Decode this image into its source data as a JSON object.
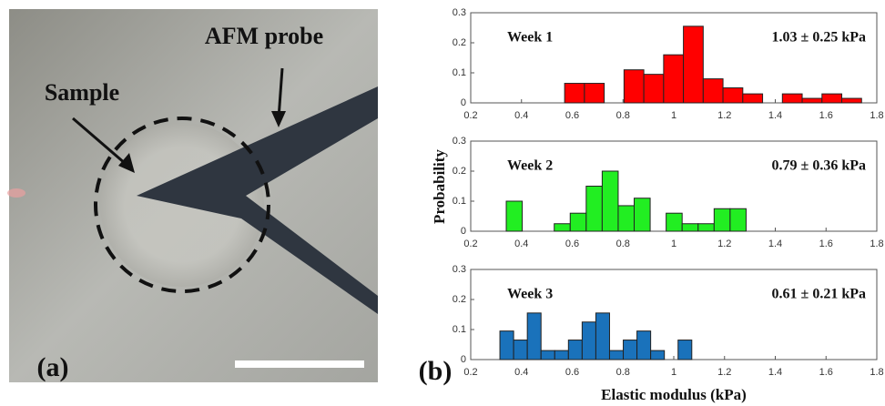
{
  "figure": {
    "panel_a": "(a)",
    "panel_b": "(b)",
    "photo_labels": [
      "AFM probe",
      "Sample"
    ],
    "ylabel": "Probability",
    "xlabel": "Elastic modulus (kPa)"
  },
  "chart_data": [
    {
      "type": "histogram",
      "title": "Week 1",
      "annotation": "1.03 ± 0.25 kPa",
      "color": "#ff0000",
      "bins": [
        0.57,
        0.648,
        0.726,
        0.804,
        0.882,
        0.96,
        1.038,
        1.116,
        1.194,
        1.272,
        1.35,
        1.428,
        1.506,
        1.584,
        1.662,
        1.74
      ],
      "values": [
        0.065,
        0.065,
        0,
        0.11,
        0.095,
        0.16,
        0.255,
        0.08,
        0.05,
        0.03,
        0,
        0.03,
        0.015,
        0.03,
        0.015
      ],
      "xlim": [
        0.2,
        1.8
      ],
      "xticks": [
        0.2,
        0.4,
        0.6,
        0.8,
        1,
        1.2,
        1.4,
        1.6,
        1.8
      ],
      "ylim": [
        0,
        0.3
      ],
      "yticks": [
        0,
        0.1,
        0.2,
        0.3
      ]
    },
    {
      "type": "histogram",
      "title": "Week 2",
      "annotation": "0.79 ± 0.36 kPa",
      "color": "#22ee22",
      "bins": [
        0.34,
        0.403,
        0.466,
        0.529,
        0.592,
        0.655,
        0.718,
        0.781,
        0.844,
        0.907,
        0.97,
        1.033,
        1.096,
        1.159,
        1.222,
        1.285
      ],
      "values": [
        0.1,
        0,
        0,
        0.025,
        0.06,
        0.15,
        0.2,
        0.085,
        0.11,
        0,
        0.06,
        0.025,
        0.025,
        0.075,
        0.075
      ],
      "xlim": [
        0.2,
        1.8
      ],
      "xticks": [
        0.2,
        0.4,
        0.6,
        0.8,
        1,
        1.2,
        1.4,
        1.6,
        1.8
      ],
      "ylim": [
        0,
        0.3
      ],
      "yticks": [
        0,
        0.1,
        0.2,
        0.3
      ]
    },
    {
      "type": "histogram",
      "title": "Week 3",
      "annotation": "0.61 ± 0.21 kPa",
      "color": "#1a72bb",
      "bins": [
        0.315,
        0.369,
        0.423,
        0.477,
        0.531,
        0.585,
        0.639,
        0.693,
        0.747,
        0.801,
        0.855,
        0.909,
        0.963,
        1.017,
        1.071
      ],
      "values": [
        0.095,
        0.065,
        0.155,
        0.03,
        0.03,
        0.065,
        0.125,
        0.155,
        0.03,
        0.065,
        0.095,
        0.03,
        0,
        0.065
      ],
      "xlim": [
        0.2,
        1.8
      ],
      "xticks": [
        0.2,
        0.4,
        0.6,
        0.8,
        1,
        1.2,
        1.4,
        1.6,
        1.8
      ],
      "ylim": [
        0,
        0.3
      ],
      "yticks": [
        0,
        0.1,
        0.2,
        0.3
      ]
    }
  ]
}
